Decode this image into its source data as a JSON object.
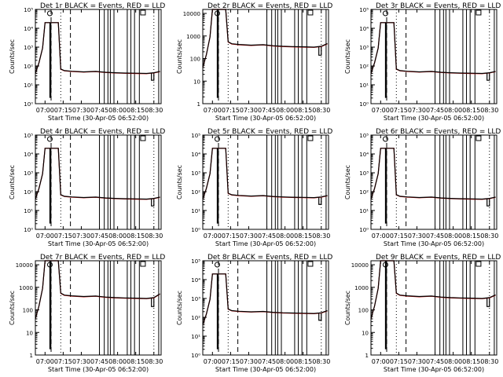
{
  "figure": {
    "ylabel": "Counts/sec",
    "xlabel": "Start Time (30-Apr-05 06:52:00)",
    "x_ticks": [
      "07:00",
      "07:15",
      "07:30",
      "07:45",
      "08:00",
      "08:15",
      "08:30"
    ],
    "y_ticks_exp": [
      "10⁰",
      "10¹",
      "10²",
      "10³",
      "10⁴",
      "10⁵"
    ],
    "y_ticks_linear": [
      "1",
      "10",
      "100",
      "1000",
      "10000"
    ]
  },
  "chart_data": [
    {
      "type": "line",
      "title": "Det 1r BLACK = Events, RED = LLD",
      "tick_style": "exp",
      "ylim": [
        1,
        100000
      ],
      "yscale": "log",
      "xlabel": "Start Time (30-Apr-05 06:52:00)",
      "ylabel": "Counts/sec",
      "series": [
        {
          "name": "Events",
          "color": "#000000"
        },
        {
          "name": "LLD",
          "color": "#d00000"
        }
      ],
      "plateau": 20000,
      "baseline": 50,
      "end_value": 50
    },
    {
      "type": "line",
      "title": "Det 2r BLACK = Events, RED = LLD",
      "tick_style": "linear",
      "ylim": [
        1,
        15000
      ],
      "yscale": "log",
      "xlabel": "Start Time (30-Apr-05 06:52:00)",
      "ylabel": "Counts/sec",
      "series": [
        {
          "name": "Events",
          "color": "#000000"
        },
        {
          "name": "LLD",
          "color": "#d00000"
        }
      ],
      "plateau": 15000,
      "baseline": 400,
      "end_value": 450
    },
    {
      "type": "line",
      "title": "Det 3r BLACK = Events, RED = LLD",
      "tick_style": "exp",
      "ylim": [
        1,
        100000
      ],
      "yscale": "log",
      "xlabel": "Start Time (30-Apr-05 06:52:00)",
      "ylabel": "Counts/sec",
      "series": [
        {
          "name": "Events",
          "color": "#000000"
        },
        {
          "name": "LLD",
          "color": "#d00000"
        }
      ],
      "plateau": 20000,
      "baseline": 50,
      "end_value": 50
    },
    {
      "type": "line",
      "title": "Det 4r BLACK = Events, RED = LLD",
      "tick_style": "exp",
      "ylim": [
        1,
        100000
      ],
      "yscale": "log",
      "xlabel": "Start Time (30-Apr-05 06:52:00)",
      "ylabel": "Counts/sec",
      "series": [
        {
          "name": "Events",
          "color": "#000000"
        },
        {
          "name": "LLD",
          "color": "#d00000"
        }
      ],
      "plateau": 20000,
      "baseline": 50,
      "end_value": 50
    },
    {
      "type": "line",
      "title": "Det 5r BLACK = Events, RED = LLD",
      "tick_style": "exp",
      "ylim": [
        1,
        100000
      ],
      "yscale": "log",
      "xlabel": "Start Time (30-Apr-05 06:52:00)",
      "ylabel": "Counts/sec",
      "series": [
        {
          "name": "Events",
          "color": "#000000"
        },
        {
          "name": "LLD",
          "color": "#d00000"
        }
      ],
      "plateau": 20000,
      "baseline": 60,
      "end_value": 60
    },
    {
      "type": "line",
      "title": "Det 6r BLACK = Events, RED = LLD",
      "tick_style": "exp",
      "ylim": [
        1,
        100000
      ],
      "yscale": "log",
      "xlabel": "Start Time (30-Apr-05 06:52:00)",
      "ylabel": "Counts/sec",
      "series": [
        {
          "name": "Events",
          "color": "#000000"
        },
        {
          "name": "LLD",
          "color": "#d00000"
        }
      ],
      "plateau": 20000,
      "baseline": 50,
      "end_value": 50
    },
    {
      "type": "line",
      "title": "Det 7r BLACK = Events, RED = LLD",
      "tick_style": "linear",
      "ylim": [
        1,
        15000
      ],
      "yscale": "log",
      "xlabel": "Start Time (30-Apr-05 06:52:00)",
      "ylabel": "Counts/sec",
      "series": [
        {
          "name": "Events",
          "color": "#000000"
        },
        {
          "name": "LLD",
          "color": "#d00000"
        }
      ],
      "plateau": 15000,
      "baseline": 400,
      "end_value": 500
    },
    {
      "type": "line",
      "title": "Det 8r BLACK = Events, RED = LLD",
      "tick_style": "exp",
      "ylim": [
        1,
        100000
      ],
      "yscale": "log",
      "xlabel": "Start Time (30-Apr-05 06:52:00)",
      "ylabel": "Counts/sec",
      "series": [
        {
          "name": "Events",
          "color": "#000000"
        },
        {
          "name": "LLD",
          "color": "#d00000"
        }
      ],
      "plateau": 20000,
      "baseline": 200,
      "end_value": 220
    },
    {
      "type": "line",
      "title": "Det 9r BLACK = Events, RED = LLD",
      "tick_style": "linear",
      "ylim": [
        1,
        15000
      ],
      "yscale": "log",
      "xlabel": "Start Time (30-Apr-05 06:52:00)",
      "ylabel": "Counts/sec",
      "series": [
        {
          "name": "Events",
          "color": "#000000"
        },
        {
          "name": "LLD",
          "color": "#d00000"
        }
      ],
      "plateau": 15000,
      "baseline": 400,
      "end_value": 450
    }
  ]
}
